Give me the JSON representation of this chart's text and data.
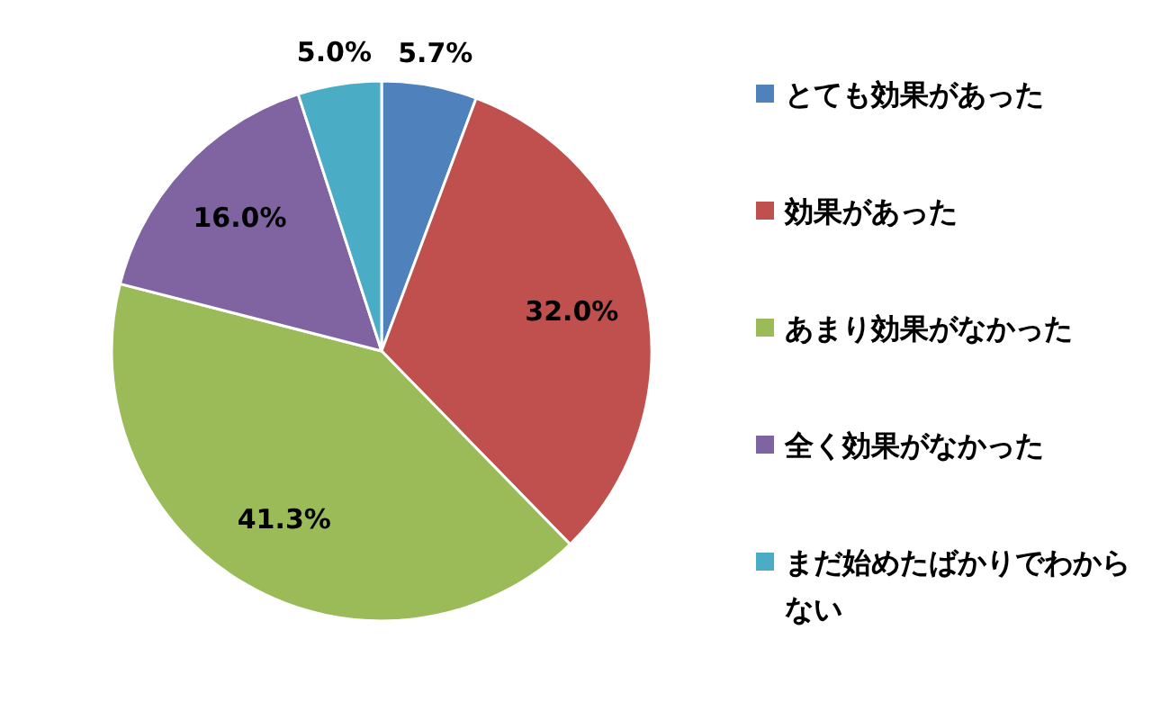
{
  "chart_data": {
    "type": "pie",
    "categories": [
      "とても効果があった",
      "効果があった",
      "あまり効果がなかった",
      "全く効果がなかった",
      "まだ始めたばかりでわからない"
    ],
    "values": [
      5.7,
      32.0,
      41.3,
      16.0,
      5.0
    ],
    "value_labels": [
      "5.7%",
      "32.0%",
      "41.3%",
      "16.0%",
      "5.0%"
    ],
    "colors": [
      "#4f81bd",
      "#c0504d",
      "#9bbb59",
      "#8064a2",
      "#4bacc6"
    ],
    "legend": "right"
  }
}
